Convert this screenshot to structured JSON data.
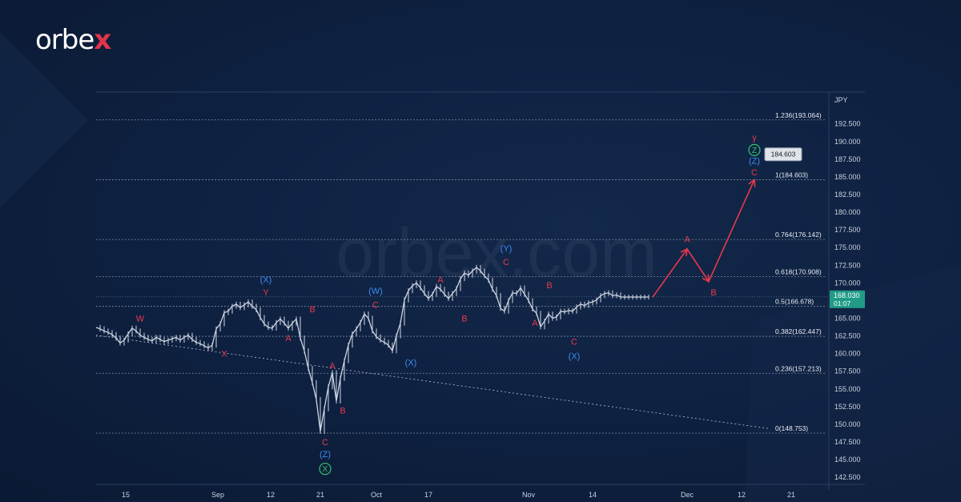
{
  "brand": {
    "logo_prefix": "orbe",
    "logo_x": "x",
    "watermark": "orbex.com"
  },
  "colors": {
    "bg": "#0e2040",
    "red": "#e8394b",
    "blue": "#3d8cf0",
    "green": "#34c46a",
    "candle": "#cfd6e2"
  },
  "chart_data": {
    "type": "line",
    "currency": "JPY",
    "ylim": [
      141.5,
      197
    ],
    "y_ticks": [
      "192.500",
      "190.000",
      "187.500",
      "185.000",
      "182.500",
      "180.000",
      "177.500",
      "175.000",
      "172.500",
      "170.000",
      "167.500",
      "165.000",
      "162.500",
      "160.000",
      "157.500",
      "155.000",
      "152.500",
      "150.000",
      "147.500",
      "145.000",
      "142.500"
    ],
    "x_ticks": [
      "15",
      "Sep",
      "12",
      "21",
      "Oct",
      "17",
      "Nov",
      "14",
      "Dec",
      "12",
      "21"
    ],
    "price_series_x": [
      0,
      5,
      10,
      15,
      20,
      25,
      30,
      35,
      40,
      45,
      50,
      55,
      60,
      65,
      70,
      75,
      80,
      85,
      90,
      95,
      100,
      105,
      110,
      115,
      120,
      125,
      130,
      135,
      140,
      145,
      150,
      155,
      160,
      165,
      170,
      175,
      180,
      185,
      190,
      195,
      200,
      205,
      210,
      215,
      220,
      225,
      230,
      235,
      240,
      245,
      250,
      255,
      260,
      265,
      270,
      275,
      280,
      285,
      290,
      295,
      300,
      305,
      310,
      315,
      320,
      325,
      330,
      335,
      340,
      345,
      350,
      355,
      360,
      365,
      370,
      375,
      380,
      385,
      390,
      395,
      400,
      405,
      410,
      415,
      420,
      425,
      430,
      435,
      440,
      445,
      450,
      455,
      460,
      465,
      470,
      475,
      480,
      485,
      490,
      495,
      500,
      505,
      510,
      515,
      520,
      525,
      530,
      535,
      540,
      545,
      550,
      555,
      560,
      565,
      570,
      575,
      580,
      585,
      590,
      595,
      600,
      605,
      610,
      615,
      620,
      625,
      630,
      635,
      640,
      645,
      650,
      655,
      660,
      665,
      670,
      675,
      680,
      685,
      690,
      695
    ],
    "price_series": [
      163.7,
      163.5,
      163.2,
      163.0,
      162.7,
      162.2,
      161.5,
      161.9,
      162.8,
      163.6,
      163.2,
      162.6,
      162.3,
      162.0,
      161.8,
      162.3,
      162.0,
      161.7,
      161.9,
      162.1,
      162.3,
      161.9,
      162.3,
      162.6,
      162.0,
      161.6,
      161.4,
      161.1,
      160.8,
      161.2,
      163.5,
      164.2,
      165.8,
      166.0,
      166.7,
      167.0,
      166.5,
      166.9,
      167.3,
      166.7,
      166.2,
      165.1,
      164.2,
      163.7,
      163.6,
      164.4,
      164.9,
      164.3,
      163.6,
      164.3,
      164.9,
      162.2,
      160.4,
      157.9,
      155.9,
      153.5,
      149.0,
      152.2,
      155.3,
      157.3,
      153.3,
      156.5,
      159.0,
      161.2,
      162.8,
      163.5,
      164.4,
      165.6,
      165.0,
      163.2,
      162.4,
      161.9,
      161.6,
      161.2,
      160.4,
      162.5,
      164.3,
      167.6,
      168.9,
      169.6,
      170.0,
      169.3,
      168.5,
      167.8,
      168.4,
      169.5,
      169.1,
      168.4,
      167.8,
      168.5,
      169.2,
      170.6,
      171.4,
      171.1,
      171.7,
      172.2,
      171.7,
      171.0,
      170.4,
      169.1,
      168.2,
      166.4,
      166.0,
      167.5,
      168.6,
      168.5,
      169.3,
      168.4,
      167.5,
      166.3,
      165.7,
      163.8,
      164.6,
      165.6,
      165.0,
      165.2,
      166.0,
      165.9,
      166.1,
      166.0,
      166.6,
      167.0,
      166.8,
      167.2,
      167.3,
      167.6,
      168.2,
      168.5,
      168.6,
      168.2,
      168.3,
      168.0,
      168.0,
      168.0,
      168.0,
      168.0,
      168.0,
      168.0,
      168.0
    ],
    "last_price": "168.030",
    "countdown": "01:07",
    "target_price": "184.603",
    "fib_levels": [
      {
        "label": "1.236(193.064)",
        "value": 193.064
      },
      {
        "label": "1(184.603)",
        "value": 184.603
      },
      {
        "label": "0.764(176.142)",
        "value": 176.142
      },
      {
        "label": "0.618(170.908)",
        "value": 170.908
      },
      {
        "label": "0.5(166.678)",
        "value": 166.678
      },
      {
        "label": "0.382(162.447)",
        "value": 162.447
      },
      {
        "label": "0.236(157.213)",
        "value": 157.213
      },
      {
        "label": "0(148.753)",
        "value": 148.753
      }
    ],
    "wave_labels": [
      {
        "text": "W",
        "color": "red",
        "price": 165.0,
        "bar": 55
      },
      {
        "text": "X",
        "color": "red",
        "price": 160.0,
        "bar": 160
      },
      {
        "text": "(X)",
        "color": "blue",
        "price": 170.5,
        "bar": 212
      },
      {
        "text": "Y",
        "color": "red",
        "price": 168.7,
        "bar": 212
      },
      {
        "text": "A",
        "color": "red",
        "price": 162.2,
        "bar": 240
      },
      {
        "text": "B",
        "color": "red",
        "price": 166.3,
        "bar": 270
      },
      {
        "text": "A",
        "color": "red",
        "price": 158.3,
        "bar": 295
      },
      {
        "text": "B",
        "color": "red",
        "price": 152.0,
        "bar": 308
      },
      {
        "text": "C",
        "color": "red",
        "price": 147.5,
        "bar": 286
      },
      {
        "text": "(Z)",
        "color": "blue",
        "price": 145.8,
        "bar": 286
      },
      {
        "text": "(W)",
        "color": "blue",
        "price": 168.9,
        "bar": 349
      },
      {
        "text": "C",
        "color": "red",
        "price": 166.9,
        "bar": 349
      },
      {
        "text": "(X)",
        "color": "blue",
        "price": 158.8,
        "bar": 393
      },
      {
        "text": "A",
        "color": "red",
        "price": 170.5,
        "bar": 430
      },
      {
        "text": "B",
        "color": "red",
        "price": 165.0,
        "bar": 460
      },
      {
        "text": "(Y)",
        "color": "blue",
        "price": 174.9,
        "bar": 512
      },
      {
        "text": "C",
        "color": "red",
        "price": 173.0,
        "bar": 512
      },
      {
        "text": "B",
        "color": "red",
        "price": 169.7,
        "bar": 566
      },
      {
        "text": "A",
        "color": "red",
        "price": 164.4,
        "bar": 548
      },
      {
        "text": "C",
        "color": "red",
        "price": 161.7,
        "bar": 597
      },
      {
        "text": "(X)",
        "color": "blue",
        "price": 159.7,
        "bar": 597
      },
      {
        "text": "A",
        "color": "red",
        "price": 176.2,
        "bar": 738
      },
      {
        "text": "B",
        "color": "red",
        "price": 168.7,
        "bar": 771
      },
      {
        "text": "y",
        "color": "red",
        "price": 190.6,
        "bar": 822
      },
      {
        "text": "(Z)",
        "color": "blue",
        "price": 187.3,
        "bar": 822
      },
      {
        "text": "C",
        "color": "red",
        "price": 185.7,
        "bar": 822
      }
    ],
    "circled_labels": [
      {
        "text": "X",
        "price": 143.7,
        "bar": 286
      },
      {
        "text": "Z",
        "price": 188.8,
        "bar": 822
      }
    ],
    "projection": {
      "prices": [
        168.0,
        174.8,
        170.2,
        184.6
      ],
      "bars": [
        695,
        738,
        765,
        822
      ]
    },
    "trendline": {
      "prices": [
        162.6,
        149.4
      ],
      "bars": [
        0,
        840
      ]
    }
  }
}
